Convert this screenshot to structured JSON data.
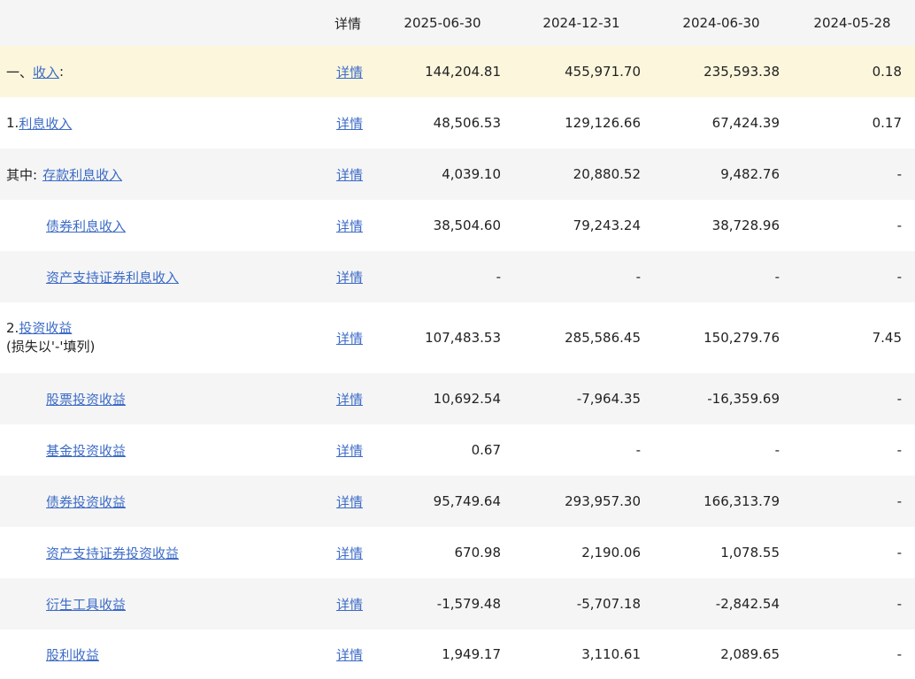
{
  "header": {
    "name": "",
    "detail": "详情",
    "dates": [
      "2025-06-30",
      "2024-12-31",
      "2024-06-30",
      "2024-05-28"
    ]
  },
  "rows": [
    {
      "prefix": "一、",
      "link": "收入",
      "suffix": ":",
      "detail": "详情",
      "values": [
        "144,204.81",
        "455,971.70",
        "235,593.38",
        "0.18"
      ]
    },
    {
      "prefix": "1.",
      "link": "利息收入",
      "suffix": "",
      "detail": "详情",
      "values": [
        "48,506.53",
        "129,126.66",
        "67,424.39",
        "0.17"
      ]
    },
    {
      "prefix": "其中:",
      "link": "存款利息收入",
      "suffix": "",
      "detail": "详情",
      "values": [
        "4,039.10",
        "20,880.52",
        "9,482.76",
        "-"
      ]
    },
    {
      "prefix": "",
      "link": "债券利息收入",
      "suffix": "",
      "detail": "详情",
      "values": [
        "38,504.60",
        "79,243.24",
        "38,728.96",
        "-"
      ]
    },
    {
      "prefix": "",
      "link": "资产支持证券利息收入",
      "suffix": "",
      "detail": "详情",
      "values": [
        "-",
        "-",
        "-",
        "-"
      ]
    },
    {
      "prefix": "2.",
      "link": "投资收益",
      "suffix": "",
      "note": "(损失以'-'填列)",
      "detail": "详情",
      "values": [
        "107,483.53",
        "285,586.45",
        "150,279.76",
        "7.45"
      ]
    },
    {
      "prefix": "",
      "link": "股票投资收益",
      "suffix": "",
      "detail": "详情",
      "values": [
        "10,692.54",
        "-7,964.35",
        "-16,359.69",
        "-"
      ]
    },
    {
      "prefix": "",
      "link": "基金投资收益",
      "suffix": "",
      "detail": "详情",
      "values": [
        "0.67",
        "-",
        "-",
        "-"
      ]
    },
    {
      "prefix": "",
      "link": "债券投资收益",
      "suffix": "",
      "detail": "详情",
      "values": [
        "95,749.64",
        "293,957.30",
        "166,313.79",
        "-"
      ]
    },
    {
      "prefix": "",
      "link": "资产支持证券投资收益",
      "suffix": "",
      "detail": "详情",
      "values": [
        "670.98",
        "2,190.06",
        "1,078.55",
        "-"
      ]
    },
    {
      "prefix": "",
      "link": "衍生工具收益",
      "suffix": "",
      "detail": "详情",
      "values": [
        "-1,579.48",
        "-5,707.18",
        "-2,842.54",
        "-"
      ]
    },
    {
      "prefix": "",
      "link": "股利收益",
      "suffix": "",
      "detail": "详情",
      "values": [
        "1,949.17",
        "3,110.61",
        "2,089.65",
        "-"
      ]
    }
  ]
}
